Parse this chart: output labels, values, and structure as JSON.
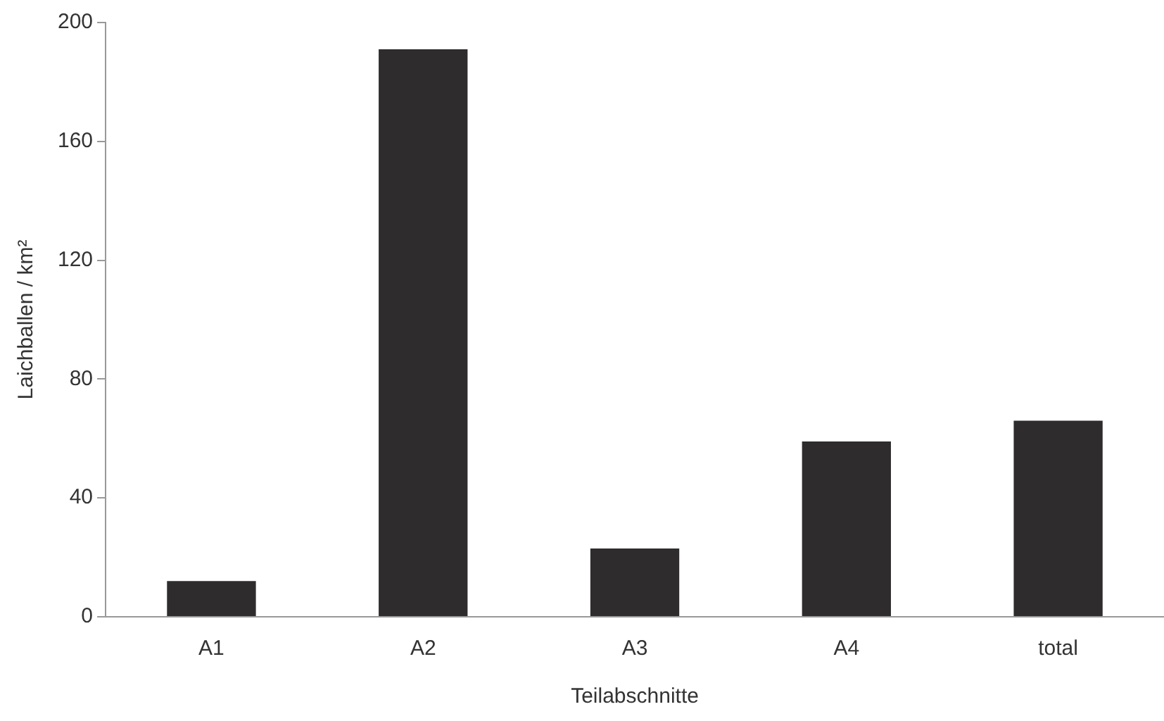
{
  "chart_data": {
    "type": "bar",
    "xlabel": "Teilabschnitte",
    "ylabel": "Laichballen / km²",
    "categories": [
      "A1",
      "A2",
      "A3",
      "A4",
      "total"
    ],
    "values": [
      12,
      191,
      23,
      59,
      66
    ],
    "color": "#2f2c2d",
    "ylim": [
      0,
      200
    ],
    "yticks": [
      0,
      40,
      80,
      120,
      160,
      200
    ],
    "grid": false,
    "legend": false
  }
}
